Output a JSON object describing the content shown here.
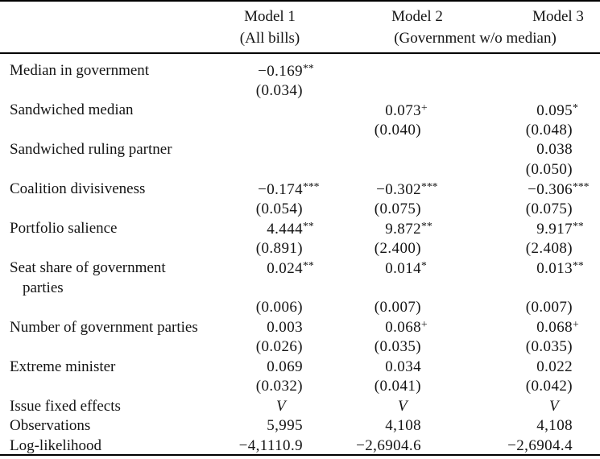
{
  "table": {
    "header": {
      "col1": {
        "title": "Model 1",
        "subtitle": "(All bills)"
      },
      "col2": {
        "title": "Model 2"
      },
      "col3": {
        "title": "Model 3"
      },
      "col23_subtitle": "(Government w/o median)"
    },
    "rows": [
      {
        "label": "Median in government",
        "coef": [
          "−0.169**",
          "",
          ""
        ],
        "se": [
          "(0.034)",
          "",
          ""
        ]
      },
      {
        "label": "Sandwiched median",
        "coef": [
          "",
          "0.073+",
          "0.095*"
        ],
        "se": [
          "",
          "(0.040)",
          "(0.048)"
        ]
      },
      {
        "label": "Sandwiched ruling partner",
        "coef": [
          "",
          "",
          "0.038"
        ],
        "se": [
          "",
          "",
          "(0.050)"
        ]
      },
      {
        "label": "Coalition divisiveness",
        "coef": [
          "−0.174***",
          "−0.302***",
          "−0.306***"
        ],
        "se": [
          "(0.054)",
          "(0.075)",
          "(0.075)"
        ]
      },
      {
        "label": "Portfolio salience",
        "coef": [
          "4.444**",
          "9.872**",
          "9.917**"
        ],
        "se": [
          "(0.891)",
          "(2.400)",
          "(2.408)"
        ]
      },
      {
        "label": "Seat share of government",
        "label2": "parties",
        "coef": [
          "0.024**",
          "0.014*",
          "0.013**"
        ],
        "se": [
          "(0.006)",
          "(0.007)",
          "(0.007)"
        ]
      },
      {
        "label": "Number of government parties",
        "coef": [
          "0.003",
          "0.068+",
          "0.068+"
        ],
        "se": [
          "(0.026)",
          "(0.035)",
          "(0.035)"
        ]
      },
      {
        "label": "Extreme minister",
        "coef": [
          "0.069",
          "0.034",
          "0.022"
        ],
        "se": [
          "(0.032)",
          "(0.041)",
          "(0.042)"
        ]
      }
    ],
    "stats": [
      {
        "label": "Issue fixed effects",
        "values": [
          "V",
          "V",
          "V"
        ],
        "align": "center",
        "italic": true
      },
      {
        "label": "Observations",
        "values": [
          "5,995",
          "4,108",
          "4,108"
        ]
      },
      {
        "label": "Log-likelihood",
        "values": [
          "−4,1110.9",
          "−2,6904.6",
          "−2,6904.4"
        ]
      }
    ]
  }
}
